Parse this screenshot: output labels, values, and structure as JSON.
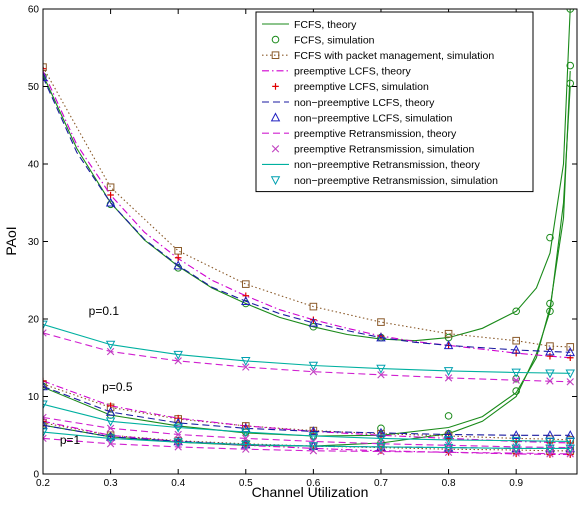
{
  "chart_data": {
    "type": "line",
    "xlabel": "Channel Utilization",
    "ylabel": "PAoI",
    "xlim": [
      0.2,
      0.99
    ],
    "ylim": [
      0,
      60
    ],
    "xticks": [
      "0.2",
      "0.3",
      "0.4",
      "0.5",
      "0.6",
      "0.7",
      "0.8",
      "0.9"
    ],
    "yticks": [
      "0",
      "10",
      "20",
      "30",
      "40",
      "50",
      "60"
    ],
    "grid": false,
    "legend_position": "top-right",
    "annotations": [
      {
        "text": "p=0.1",
        "x": 0.29,
        "y": 20.5
      },
      {
        "text": "p=0.5",
        "x": 0.31,
        "y": 10.7
      },
      {
        "text": "p=1",
        "x": 0.24,
        "y": 3.9
      }
    ],
    "series": [
      {
        "name": "FCFS, theory",
        "color": "#1a8a1a",
        "style": "solid",
        "marker": "none",
        "groups": [
          {
            "x": [
              0.2,
              0.25,
              0.3,
              0.35,
              0.4,
              0.45,
              0.5,
              0.55,
              0.6,
              0.65,
              0.7,
              0.75,
              0.8,
              0.85,
              0.9,
              0.93,
              0.95,
              0.97,
              0.98
            ],
            "y": [
              51.5,
              42,
              35,
              30.2,
              26.8,
              24.0,
              22.0,
              20.2,
              19.0,
              18.0,
              17.4,
              17.2,
              17.6,
              18.8,
              21,
              24,
              28.5,
              40,
              60
            ]
          },
          {
            "x": [
              0.2,
              0.3,
              0.4,
              0.5,
              0.6,
              0.7,
              0.8,
              0.85,
              0.9,
              0.93,
              0.95,
              0.97,
              0.98
            ],
            "y": [
              11.2,
              7.6,
              6.2,
              5.3,
              4.9,
              5.0,
              6.0,
              7.4,
              10.5,
              15,
              21.5,
              33,
              52
            ]
          },
          {
            "x": [
              0.2,
              0.3,
              0.4,
              0.5,
              0.6,
              0.7,
              0.8,
              0.85,
              0.9,
              0.93,
              0.95,
              0.97,
              0.98
            ],
            "y": [
              6.3,
              4.8,
              4.1,
              3.7,
              3.6,
              4.0,
              5.2,
              6.8,
              10,
              15.5,
              21,
              35,
              50
            ]
          }
        ]
      },
      {
        "name": "FCFS, simulation",
        "color": "#1a8a1a",
        "style": "none",
        "marker": "circle",
        "groups": [
          {
            "x": [
              0.2,
              0.3,
              0.4,
              0.5,
              0.6,
              0.7,
              0.8,
              0.9,
              0.95,
              0.98
            ],
            "y": [
              51.3,
              34.8,
              26.6,
              22.0,
              19.0,
              17.6,
              17.6,
              21.0,
              30.5,
              60
            ]
          },
          {
            "x": [
              0.2,
              0.3,
              0.4,
              0.5,
              0.6,
              0.7,
              0.8,
              0.9,
              0.95,
              0.98
            ],
            "y": [
              11.3,
              7.6,
              6.2,
              5.4,
              4.9,
              5.9,
              7.5,
              12.3,
              22.0,
              52.7
            ]
          },
          {
            "x": [
              0.2,
              0.3,
              0.4,
              0.5,
              0.6,
              0.7,
              0.8,
              0.9,
              0.95,
              0.98
            ],
            "y": [
              6.3,
              4.8,
              4.1,
              3.8,
              3.6,
              4.0,
              5.2,
              10.7,
              21.0,
              50.4
            ]
          }
        ]
      },
      {
        "name": "FCFS with packet management, simulation",
        "color": "#8a5a2a",
        "style": "dotted",
        "marker": "square",
        "groups": [
          {
            "x": [
              0.2,
              0.3,
              0.4,
              0.5,
              0.6,
              0.7,
              0.8,
              0.9,
              0.95,
              0.98
            ],
            "y": [
              52.5,
              37.0,
              28.8,
              24.5,
              21.6,
              19.6,
              18.1,
              17.2,
              16.5,
              16.4
            ]
          },
          {
            "x": [
              0.2,
              0.3,
              0.4,
              0.5,
              0.6,
              0.7,
              0.8,
              0.9,
              0.95,
              0.98
            ],
            "y": [
              11.6,
              8.6,
              7.1,
              6.2,
              5.6,
              5.2,
              4.9,
              4.6,
              4.5,
              4.4
            ]
          },
          {
            "x": [
              0.2,
              0.3,
              0.4,
              0.5,
              0.6,
              0.7,
              0.8,
              0.9,
              0.95,
              0.98
            ],
            "y": [
              6.6,
              5.0,
              4.3,
              3.9,
              3.6,
              3.4,
              3.2,
              3.1,
              3.0,
              3.0
            ]
          }
        ]
      },
      {
        "name": "preemptive LCFS, theory",
        "color": "#d000d0",
        "style": "dashdot",
        "marker": "none",
        "groups": [
          {
            "x": [
              0.2,
              0.25,
              0.3,
              0.35,
              0.4,
              0.45,
              0.5,
              0.55,
              0.6,
              0.65,
              0.7,
              0.75,
              0.8,
              0.85,
              0.9,
              0.95,
              0.98
            ],
            "y": [
              52.0,
              42.5,
              36.0,
              31.2,
              27.8,
              25.0,
              23.0,
              21.2,
              19.9,
              18.8,
              17.8,
              17.1,
              16.6,
              16.1,
              15.6,
              15.2,
              15.0
            ]
          },
          {
            "x": [
              0.2,
              0.3,
              0.4,
              0.5,
              0.6,
              0.7,
              0.8,
              0.9,
              0.98
            ],
            "y": [
              12.0,
              8.8,
              7.2,
              6.2,
              5.5,
              5.0,
              4.6,
              4.2,
              4.0
            ]
          },
          {
            "x": [
              0.2,
              0.3,
              0.4,
              0.5,
              0.6,
              0.7,
              0.8,
              0.9,
              0.98
            ],
            "y": [
              6.8,
              5.0,
              4.2,
              3.7,
              3.3,
              3.0,
              2.8,
              2.6,
              2.5
            ]
          }
        ]
      },
      {
        "name": "preemptive LCFS, simulation",
        "color": "#e00000",
        "style": "none",
        "marker": "plus",
        "groups": [
          {
            "x": [
              0.2,
              0.3,
              0.4,
              0.5,
              0.6,
              0.7,
              0.8,
              0.9,
              0.95,
              0.98
            ],
            "y": [
              52.3,
              36.0,
              27.9,
              23.0,
              19.9,
              17.8,
              16.6,
              15.6,
              15.2,
              15.0
            ]
          },
          {
            "x": [
              0.2,
              0.3,
              0.4,
              0.5,
              0.6,
              0.7,
              0.8,
              0.9,
              0.95,
              0.98
            ],
            "y": [
              12.0,
              8.8,
              7.2,
              6.2,
              5.5,
              5.0,
              4.6,
              4.2,
              4.0,
              4.0
            ]
          },
          {
            "x": [
              0.2,
              0.3,
              0.4,
              0.5,
              0.6,
              0.7,
              0.8,
              0.9,
              0.95,
              0.98
            ],
            "y": [
              6.8,
              5.0,
              4.2,
              3.7,
              3.3,
              3.0,
              2.8,
              2.6,
              2.5,
              2.5
            ]
          }
        ]
      },
      {
        "name": "non−preemptive LCFS, theory",
        "color": "#1a1aa0",
        "style": "dashed",
        "marker": "none",
        "groups": [
          {
            "x": [
              0.2,
              0.25,
              0.3,
              0.35,
              0.4,
              0.45,
              0.5,
              0.55,
              0.6,
              0.65,
              0.7,
              0.75,
              0.8,
              0.85,
              0.9,
              0.95,
              0.98
            ],
            "y": [
              51.2,
              41.5,
              35.0,
              30.3,
              26.9,
              24.1,
              22.3,
              20.7,
              19.5,
              18.5,
              17.6,
              17.0,
              16.6,
              16.3,
              16.0,
              15.8,
              15.7
            ]
          },
          {
            "x": [
              0.2,
              0.3,
              0.4,
              0.5,
              0.6,
              0.7,
              0.8,
              0.9,
              0.98
            ],
            "y": [
              11.3,
              8.0,
              6.6,
              5.9,
              5.5,
              5.3,
              5.1,
              5.0,
              5.0
            ]
          },
          {
            "x": [
              0.2,
              0.3,
              0.4,
              0.5,
              0.6,
              0.7,
              0.8,
              0.9,
              0.98
            ],
            "y": [
              6.3,
              4.8,
              4.2,
              3.8,
              3.6,
              3.5,
              3.4,
              3.3,
              3.3
            ]
          }
        ]
      },
      {
        "name": "non−preemptive LCFS, simulation",
        "color": "#2020c0",
        "style": "none",
        "marker": "triangle-up",
        "groups": [
          {
            "x": [
              0.2,
              0.3,
              0.4,
              0.5,
              0.6,
              0.7,
              0.8,
              0.9,
              0.95,
              0.98
            ],
            "y": [
              51.2,
              35.0,
              26.9,
              22.3,
              19.5,
              17.6,
              16.6,
              16.0,
              15.8,
              15.7
            ]
          },
          {
            "x": [
              0.2,
              0.3,
              0.4,
              0.5,
              0.6,
              0.7,
              0.8,
              0.9,
              0.95,
              0.98
            ],
            "y": [
              11.3,
              8.0,
              6.6,
              5.9,
              5.5,
              5.3,
              5.1,
              5.0,
              5.0,
              5.0
            ]
          },
          {
            "x": [
              0.2,
              0.3,
              0.4,
              0.5,
              0.6,
              0.7,
              0.8,
              0.9,
              0.95,
              0.98
            ],
            "y": [
              6.3,
              4.8,
              4.2,
              3.8,
              3.6,
              3.5,
              3.4,
              3.3,
              3.3,
              3.3
            ]
          }
        ]
      },
      {
        "name": "preemptive Retransmission, theory",
        "color": "#d020d0",
        "style": "dashed",
        "marker": "none",
        "groups": [
          {
            "x": [
              0.2,
              0.3,
              0.4,
              0.5,
              0.6,
              0.7,
              0.8,
              0.9,
              0.98
            ],
            "y": [
              18.2,
              15.8,
              14.6,
              13.8,
              13.2,
              12.8,
              12.4,
              12.1,
              11.9
            ]
          },
          {
            "x": [
              0.2,
              0.3,
              0.4,
              0.5,
              0.6,
              0.7,
              0.8,
              0.9,
              0.98
            ],
            "y": [
              7.3,
              5.9,
              5.1,
              4.6,
              4.2,
              3.9,
              3.7,
              3.5,
              3.4
            ]
          },
          {
            "x": [
              0.2,
              0.3,
              0.4,
              0.5,
              0.6,
              0.7,
              0.8,
              0.9,
              0.98
            ],
            "y": [
              4.6,
              3.9,
              3.5,
              3.2,
              3.0,
              2.9,
              2.8,
              2.7,
              2.6
            ]
          }
        ]
      },
      {
        "name": "preemptive Retransmission, simulation",
        "color": "#c040c0",
        "style": "none",
        "marker": "x",
        "groups": [
          {
            "x": [
              0.2,
              0.3,
              0.4,
              0.5,
              0.6,
              0.7,
              0.8,
              0.9,
              0.95,
              0.98
            ],
            "y": [
              18.2,
              15.8,
              14.6,
              13.8,
              13.2,
              12.8,
              12.4,
              12.1,
              12.0,
              11.9
            ]
          },
          {
            "x": [
              0.2,
              0.3,
              0.4,
              0.5,
              0.6,
              0.7,
              0.8,
              0.9,
              0.95,
              0.98
            ],
            "y": [
              7.3,
              5.9,
              5.1,
              4.6,
              4.2,
              3.9,
              3.7,
              3.5,
              3.4,
              3.4
            ]
          },
          {
            "x": [
              0.2,
              0.3,
              0.4,
              0.5,
              0.6,
              0.7,
              0.8,
              0.9,
              0.95,
              0.98
            ],
            "y": [
              4.6,
              3.9,
              3.5,
              3.2,
              3.0,
              2.9,
              2.8,
              2.7,
              2.6,
              2.6
            ]
          }
        ]
      },
      {
        "name": "non−preemptive Retransmission, theory",
        "color": "#00b0a0",
        "style": "solid",
        "marker": "none",
        "groups": [
          {
            "x": [
              0.2,
              0.3,
              0.4,
              0.5,
              0.6,
              0.7,
              0.8,
              0.9,
              0.98
            ],
            "y": [
              19.3,
              16.7,
              15.4,
              14.6,
              14.0,
              13.6,
              13.3,
              13.1,
              13.0
            ]
          },
          {
            "x": [
              0.2,
              0.3,
              0.4,
              0.5,
              0.6,
              0.7,
              0.8,
              0.9,
              0.98
            ],
            "y": [
              9.0,
              6.8,
              6.0,
              5.4,
              4.9,
              4.6,
              4.4,
              4.3,
              4.2
            ]
          },
          {
            "x": [
              0.2,
              0.3,
              0.4,
              0.5,
              0.6,
              0.7,
              0.8,
              0.9,
              0.98
            ],
            "y": [
              5.4,
              4.6,
              4.1,
              3.8,
              3.6,
              3.5,
              3.4,
              3.3,
              3.3
            ]
          }
        ]
      },
      {
        "name": "non−preemptive Retransmission, simulation",
        "color": "#00a0b0",
        "style": "none",
        "marker": "triangle-down",
        "groups": [
          {
            "x": [
              0.2,
              0.3,
              0.4,
              0.5,
              0.6,
              0.7,
              0.8,
              0.9,
              0.95,
              0.98
            ],
            "y": [
              19.3,
              16.7,
              15.4,
              14.6,
              14.0,
              13.6,
              13.3,
              13.1,
              13.0,
              13.0
            ]
          },
          {
            "x": [
              0.2,
              0.3,
              0.4,
              0.5,
              0.6,
              0.7,
              0.8,
              0.9,
              0.95,
              0.98
            ],
            "y": [
              9.0,
              6.8,
              6.0,
              5.4,
              4.9,
              4.6,
              4.4,
              4.3,
              4.2,
              4.2
            ]
          },
          {
            "x": [
              0.2,
              0.3,
              0.4,
              0.5,
              0.6,
              0.7,
              0.8,
              0.9,
              0.95,
              0.98
            ],
            "y": [
              5.4,
              4.6,
              4.1,
              3.8,
              3.6,
              3.5,
              3.4,
              3.3,
              3.3,
              3.3
            ]
          }
        ]
      }
    ]
  }
}
